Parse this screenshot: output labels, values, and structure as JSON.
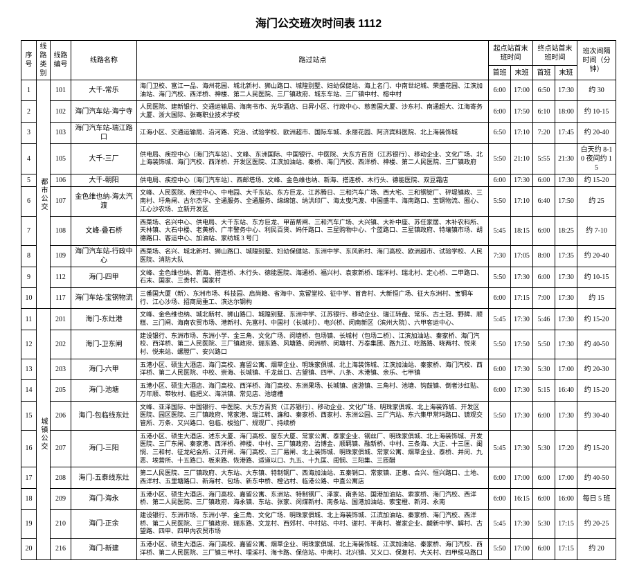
{
  "title": "海门公交班次时间表 1112",
  "headers": {
    "seq": "序号",
    "category": "线路类别",
    "route_id": "线路编号",
    "route_name": "线路名称",
    "stops": "路过站点",
    "start_station": "起点站首末班时间",
    "end_station": "终点站首末班时间",
    "first": "首班",
    "last": "末班",
    "interval": "班次间隔时间（分钟）"
  },
  "groups": [
    {
      "category": "都市公交",
      "rows": [
        {
          "seq": "1",
          "id": "101",
          "name": "大千-常乐",
          "stops": "海门卫校、富江一品、海州花园、城北新村、狮山路口、城隍别墅、妇幼保健站、海上名门、中南世纪城、荣盛花园、江滨加油站、海门汽校、西洋桥、神楼、第二人民医院、三厂镇政府、城东车站、三厂镇中村、榕中村",
          "s1": "6:00",
          "s2": "17:00",
          "e1": "6:50",
          "e2": "17:30",
          "int": "约 30"
        },
        {
          "seq": "2",
          "id": "102",
          "name": "海门汽车站-海宁寺",
          "stops": "人民医院、建新银行、交通运输局、海南书市、光华酒店、日昇小区、行政中心、慈善国大厦、沙东村、南通超大、江海寄务大厦、浙大国际、张骞职业技术学校",
          "s1": "6:00",
          "s2": "17:50",
          "e1": "6:10",
          "e2": "18:00",
          "int": "约 10-15"
        },
        {
          "seq": "3",
          "id": "103",
          "name": "海门汽车站-瑞江路口",
          "stops": "江海小区、交通运输局、沿河路、究治、试验学校、欧洲超市、国际车城、永丽花园、阿济宾料医院、北上海装饰城",
          "s1": "6:50",
          "s2": "17:10",
          "e1": "7:20",
          "e2": "17:45",
          "int": "约 20-40"
        },
        {
          "seq": "4",
          "id": "105",
          "name": "大千-三厂",
          "stops": "供电局、疾控中心（海门汽车站）、文峰、东洲国际、中国银行、中医院、大东方百货（江苏银行）、移动企业、文化广场、北上海装饰城、海门汽校、西洋桥、开发区医院、江滨加油站、秦桥、海门汽校、西洋桥、神楼、第二人民医院、三厂镇政府",
          "s1": "5:50",
          "s2": "21:10",
          "e1": "5:55",
          "e2": "21:30",
          "int": "白天约 8-10 夜间约 15"
        },
        {
          "seq": "5",
          "id": "106",
          "name": "大千-朝阳",
          "stops": "供电局、疾控中心（海门汽车站）、西邮塔场、文峰、金色维也纳、新海、搭连桥、木行头、德能医院、双豆霜店",
          "s1": "6:00",
          "s2": "17:30",
          "e1": "6:00",
          "e2": "17:30",
          "int": "约 15-20"
        },
        {
          "seq": "6",
          "id": "107",
          "name": "金色维也纳-海太汽渡",
          "stops": "文峰、人民医院、疾控中心、中电园、大千东站、东方巨龙、江苏腾日、三和汽车广场、西大宅、三和钢锭厂、砰堤镇政、三南村、圩角闸、古尔杰华、全通服务、全通服务、绵绵馆、纳洪印厂、海太曳汽渡、中国盛丰、海南路口、宝钢物流、囿心、江心沙农场、立新开发区",
          "s1": "5:50",
          "s2": "17:10",
          "e1": "6:40",
          "e2": "17:50",
          "int": "约 25"
        },
        {
          "seq": "7",
          "id": "108",
          "name": "文峰-叠石桥",
          "stops": "西菜场、名兴中心、供电局、大千东站、东方巨龙、甲苗帮闸、三和汽车广场、大兴镇、大补中座、苏任家居、木补农科所、天林镇、大石中楼、老黄桥、广丰警务中心、利民百货、妈仟路口、三星购物中心、个蓝路口、三星镇政府、特壤镇市场、胡德路口、客运中心、加油站、家纺城 3 号门",
          "s1": "5:45",
          "s2": "18:15",
          "e1": "6:00",
          "e2": "18:25",
          "int": "约 7-10"
        },
        {
          "seq": "8",
          "id": "109",
          "name": "海门汽车站-行政中心",
          "stops": "西菜场、名兴、城北新村、狮山路口、城隍别墅、妇幼保健站、东洲中学、东风新村、海门高校、欧洲超市、试验学校、人民医院、消防大队",
          "s1": "7:30",
          "s2": "17:05",
          "e1": "8:00",
          "e2": "17:35",
          "int": "约 20-40"
        },
        {
          "seq": "9",
          "id": "112",
          "name": "海门-四甲",
          "stops": "文峰、金色维也纳、新海、搭连桥、木行头、德能医院、海通桥、福兴村、袁家新桥、瑞洋村、瑞北村、定心桥、二甲路口、石末、国家、三贵村、国家村",
          "s1": "5:50",
          "s2": "17:30",
          "e1": "6:00",
          "e2": "17:30",
          "int": "约 10-15"
        },
        {
          "seq": "10",
          "id": "117",
          "name": "海门车站-宝钢物流",
          "stops": "三番国大厦（新）、东洲市场、科技园、启尚籍、省海中、宽留堂校、征中学、首青村、大新恒广场、征大东洲村、宝钢车行、江心沙场、招商局重工、滨达尔钢构",
          "s1": "6:00",
          "s2": "17:15",
          "e1": "7:00",
          "e2": "17:30",
          "int": "约 15"
        }
      ]
    },
    {
      "category": "城镇公交",
      "rows": [
        {
          "seq": "11",
          "id": "201",
          "name": "海门-东灶港",
          "stops": "文峰、金色维也纳、城北新村、狮山路口、城隍别墅、东洲中学、江苏银行、移动企业、瑞江转盘、常乐、古土冠、野牌、顺糕、三门闸、海南农贸市场、港新村、先富村、中国村（长城村）、电兴桥、闵南新区（滨州大院）、六甲客运中心、",
          "s1": "5:45",
          "s2": "17:30",
          "e1": "5:46",
          "e2": "17:30",
          "int": "约 15-20"
        },
        {
          "seq": "12",
          "id": "202",
          "name": "海门-卫东闸",
          "stops": "建设银行、东洲市场、东洲小学、金三角、文化广场、闵塘桥、包场镇、长城村（包场二桥）、江滨加油站、秦家桥、海门汽校、西洋桥、第二人民医院、三厂镇政府、瑞东路、风塘路、闵洲桥、闵塘村、万泰集团、路九江、吃路路、晓两村、悦来村、悦来站、螺膛厂、安兴路口",
          "s1": "5:50",
          "s2": "17:50",
          "e1": "5:50",
          "e2": "17:30",
          "int": "约 40-50"
        },
        {
          "seq": "13",
          "id": "203",
          "name": "海门-六甲",
          "stops": "五港小区、硕生大酒店、海门高校、嘉留公寓、烟草企业、明珠家俱城、北上海装饰城、江滨加油站、秦家桥、海门汽校、西洋桥、第二人民医院、中校、崇海、长城镇、千龙丝口、古望镇、四甲、八条、木港镇、余乐、七甲镇",
          "s1": "6:00",
          "s2": "17:30",
          "e1": "5:30",
          "e2": "17:00",
          "int": "约 20-30"
        },
        {
          "seq": "14",
          "id": "205",
          "name": "海门-池塘",
          "stops": "五港小区、硕生大酒店、海门高校、西洋桥、海门高校、东洲果场、长城镇、卤游镇、三角村、池塘、钩鼓镇、倒者沙红贴、万年顺、带牧村、临把义、海洪镇、常见店、池塘槽",
          "s1": "6:00",
          "s2": "17:30",
          "e1": "5:15",
          "e2": "16:40",
          "int": "约 15-20"
        },
        {
          "seq": "15",
          "id": "206",
          "name": "海门-包临线东灶",
          "stops": "文峰、亚泽国际、中国银行、中医院、大东方百货（江苏银行）、移动企业、文化广场、明珠家俱城、北上海装饰城、开发区医院、园区医院、三厂镇政府、常家港、瑞江转、濂和、秦家桥、西家村、东洲公园、三厂汽站、东六集甲常玛路口、镜观交管所、万条、又兴路口、包临、梭验厂、规观厂、持续桥",
          "s1": "5:50",
          "s2": "17:30",
          "e1": "6:00",
          "e2": "17:30",
          "int": "约 30-40"
        },
        {
          "seq": "16",
          "id": "207",
          "name": "海门-三阳",
          "stops": "五港小区、硕生大酒店、述东大厦、海门高校、窗东大厦、常家公寓、泰家企业、钢丝厂、明珠家俱城、北上海装饰城、开发医院、三厂东闸、秦家港、西洋桥、神楼、中村、三厂镇政府、治博金、顺羁镇、融新桥、中村、三条海、大正、十三匡、闺悯、三和村、征龙纪会所、江开闸、海门高校、三厂易闸、北上装饰城、明珠家俱城、常家公寓、烟草企业、泰桥、并闵、九恶、埃营所、十五路口、板来路、恢港路、适道以口、九五、十九匡、闺悯、三阳集、三匝醋",
          "s1": "5:45",
          "s2": "17:30",
          "e1": "5:30",
          "e2": "17:20",
          "int": "约 15-20"
        },
        {
          "seq": "17",
          "id": "208",
          "name": "海门-五泰线东灶",
          "stops": "第二人民医院、三厂镇政府、大东站、大东镇、特制钢厂、西海加油站、五秦销口、常家镇、正惠、合兴、恒兴路口、土地、西洋村、五里塘路口、新海村、包场、新东中桥、橙沾村、临港公路、中直公寓店",
          "s1": "6:00",
          "s2": "17:00",
          "e1": "6:00",
          "e2": "17:00",
          "int": "约 40-50"
        },
        {
          "seq": "18",
          "id": "209",
          "name": "海门-海永",
          "stops": "五港小区、硕生大酒店、海门高校、嘉留公寓、东洲站、特制钢厂、泽家、南条站、国港加油站、索家桥、海门汽校、西洋桥、第二人民医院、三厂镇政府、海永镇、东站、张家、闵煤新村、南条站、国港加油站、索宝橙、新河、永南",
          "s1": "6:00",
          "s2": "16:15",
          "e1": "6:00",
          "e2": "16:00",
          "int": "每日 5 班"
        },
        {
          "seq": "19",
          "id": "210",
          "name": "海门-正余",
          "stops": "建设银行、东洲市场、东洲小学、金三角、文化广场、明珠家俱城、北上海装饰城、江滨加油站、秦家桥、海门汽校、西洋桥、第二人民医院、三厂镇政府、瑞东路、文龙村、西郊村、中村站、中村、谢村、平南村、崔家企业、麟新中学、解村、古望路、四甲、四甲内农贸市场",
          "s1": "5:45",
          "s2": "17:30",
          "e1": "5:30",
          "e2": "17:15",
          "int": "约 20-25"
        },
        {
          "seq": "20",
          "id": "216",
          "name": "海门-新建",
          "stops": "五港小区、硕生大酒店、海门高校、嘉留公寓、烟草企业、明珠家俱城、北上海装饰城、江滨加油站、秦家桥、海门汽校、西洋桥、第二人民医院、三厂镇三甲村、埋溪村、海卡路、保倍站、中南村、北兴镇、又义口、保复村、大关村、四甲缆马路口",
          "s1": "5:50",
          "s2": "17:00",
          "e1": "6:00",
          "e2": "17:15",
          "int": "约 20"
        }
      ]
    }
  ]
}
